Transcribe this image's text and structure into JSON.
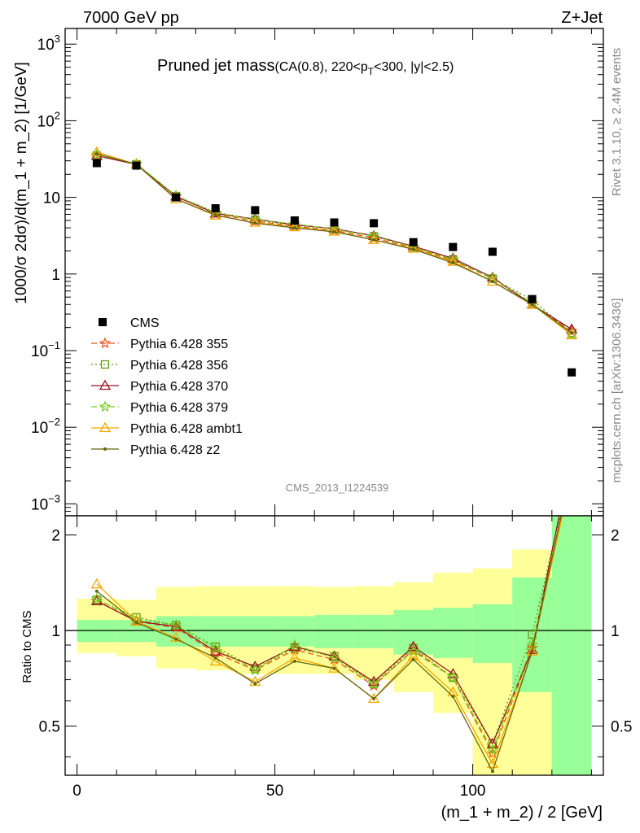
{
  "header": {
    "left": "7000 GeV pp",
    "right": "Z+Jet",
    "side_top": "Rivet 3.1.10, ≥ 2.4M events",
    "side_bottom": "mcplots.cern.ch [arXiv:1306.3436]",
    "watermark": "CMS_2013_I1224539"
  },
  "title": {
    "main": "Pruned jet mass",
    "sub_prefix": "(CA(0.8), 220<p",
    "sub_subscript": "T",
    "sub_suffix": "<300, |y|<2.5)"
  },
  "axes": {
    "ylabel_top": "1000/σ 2dσ)/d(m_1 + m_2) [1/GeV]",
    "ylabel_bottom": "Ratio to CMS",
    "xlabel": "(m_1 + m_2) / 2 [GeV]"
  },
  "colors": {
    "cms": "#000000",
    "p355": "#ee5511",
    "p356": "#669911",
    "p370": "#991122",
    "p379": "#77cc22",
    "ambt1": "#f5a800",
    "z2": "#666611",
    "band_inner": "#99ff99",
    "band_outer": "#ffff99"
  },
  "chart_data": [
    {
      "type": "scatter",
      "title": "Pruned jet mass(CA(0.8), 220<pT<300, |y|<2.5)",
      "xlabel": "(m_1 + m_2) / 2 [GeV]",
      "ylabel": "1000/σ 2dσ)/d(m_1 + m_2) [1/GeV]",
      "xlim": [
        -3,
        133
      ],
      "ylim": [
        0.0007,
        1600
      ],
      "yscale": "log",
      "yticks": [
        {
          "v": 0.001,
          "base": "10",
          "exp": "−3"
        },
        {
          "v": 0.01,
          "base": "10",
          "exp": "−2"
        },
        {
          "v": 0.1,
          "base": "10",
          "exp": "−1"
        },
        {
          "v": 1,
          "base": "1",
          "exp": ""
        },
        {
          "v": 10,
          "base": "10",
          "exp": ""
        },
        {
          "v": 100,
          "base": "10",
          "exp": "2"
        },
        {
          "v": 1000,
          "base": "10",
          "exp": "3"
        }
      ],
      "x": [
        5,
        15,
        25,
        35,
        45,
        55,
        65,
        75,
        85,
        95,
        105,
        115,
        125
      ],
      "legend_position": "left",
      "series": [
        {
          "name": "CMS",
          "key": "cms",
          "style": "data",
          "values": [
            28,
            26,
            10,
            7.2,
            6.8,
            5.0,
            4.7,
            4.6,
            2.6,
            2.25,
            1.95,
            0.47,
            0.052
          ]
        },
        {
          "name": "Pythia 6.428 355",
          "key": "p355",
          "style": "dashed",
          "marker": "star",
          "values": [
            35,
            27,
            10.2,
            6.1,
            4.9,
            4.2,
            3.7,
            2.95,
            2.2,
            1.5,
            0.87,
            0.4,
            0.18
          ]
        },
        {
          "name": "Pythia 6.428 356",
          "key": "p356",
          "style": "dotted",
          "marker": "square",
          "values": [
            35,
            27,
            10.4,
            6.4,
            5.1,
            4.3,
            3.9,
            3.1,
            2.25,
            1.55,
            0.87,
            0.46,
            0.17
          ]
        },
        {
          "name": "Pythia 6.428 370",
          "key": "p370",
          "style": "solid",
          "marker": "triangle",
          "values": [
            35,
            27,
            10.3,
            6.2,
            5.2,
            4.4,
            3.9,
            3.15,
            2.3,
            1.6,
            0.9,
            0.4,
            0.19
          ]
        },
        {
          "name": "Pythia 6.428 379",
          "key": "p379",
          "style": "dashed",
          "marker": "star",
          "values": [
            36,
            27.5,
            10.5,
            6.3,
            5.1,
            4.5,
            3.85,
            3.1,
            2.25,
            1.55,
            0.88,
            0.42,
            0.16
          ]
        },
        {
          "name": "Pythia 6.428 ambt1",
          "key": "ambt1",
          "style": "solid",
          "marker": "triangle",
          "values": [
            39,
            27,
            9.5,
            5.8,
            4.7,
            4.1,
            3.6,
            2.8,
            2.15,
            1.45,
            0.8,
            0.4,
            0.16
          ]
        },
        {
          "name": "Pythia 6.428 z2",
          "key": "z2",
          "style": "solid",
          "marker": "dot",
          "values": [
            37,
            27,
            9.5,
            5.9,
            4.6,
            4.0,
            3.55,
            2.8,
            2.1,
            1.4,
            0.8,
            0.4,
            0.17
          ]
        }
      ]
    },
    {
      "type": "line",
      "ylabel": "Ratio to CMS",
      "xlabel": "(m_1 + m_2) / 2 [GeV]",
      "xlim": [
        -3,
        133
      ],
      "ylim": [
        0.35,
        2.3
      ],
      "xticks": [
        0,
        50,
        100
      ],
      "yticks": [
        0.5,
        1,
        2
      ],
      "bins": [
        [
          0,
          10
        ],
        [
          10,
          20
        ],
        [
          20,
          30
        ],
        [
          30,
          40
        ],
        [
          40,
          50
        ],
        [
          50,
          60
        ],
        [
          60,
          70
        ],
        [
          70,
          80
        ],
        [
          80,
          90
        ],
        [
          90,
          100
        ],
        [
          100,
          110
        ],
        [
          110,
          120
        ],
        [
          120,
          130
        ]
      ],
      "band_inner": [
        [
          0.92,
          1.08
        ],
        [
          0.92,
          1.08
        ],
        [
          0.89,
          1.11
        ],
        [
          0.89,
          1.11
        ],
        [
          0.89,
          1.11
        ],
        [
          0.89,
          1.11
        ],
        [
          0.88,
          1.12
        ],
        [
          0.88,
          1.12
        ],
        [
          0.84,
          1.16
        ],
        [
          0.82,
          1.18
        ],
        [
          0.79,
          1.21
        ],
        [
          0.64,
          1.47
        ],
        [
          0.35,
          2.3
        ]
      ],
      "band_outer": [
        [
          0.85,
          1.26
        ],
        [
          0.83,
          1.25
        ],
        [
          0.76,
          1.37
        ],
        [
          0.75,
          1.38
        ],
        [
          0.73,
          1.38
        ],
        [
          0.73,
          1.38
        ],
        [
          0.73,
          1.37
        ],
        [
          0.7,
          1.38
        ],
        [
          0.64,
          1.42
        ],
        [
          0.55,
          1.52
        ],
        [
          0.35,
          1.57
        ],
        [
          0.35,
          1.8
        ],
        [
          0.35,
          2.3
        ]
      ],
      "series": [
        {
          "name": "Pythia 6.428 355",
          "key": "p355",
          "style": "dashed",
          "marker": "star",
          "values": [
            1.24,
            1.07,
            1.02,
            0.85,
            0.75,
            0.87,
            0.81,
            0.67,
            0.87,
            0.71,
            0.41,
            0.88,
            3.2
          ]
        },
        {
          "name": "Pythia 6.428 356",
          "key": "p356",
          "style": "dotted",
          "marker": "square",
          "values": [
            1.25,
            1.1,
            1.04,
            0.89,
            0.76,
            0.88,
            0.83,
            0.68,
            0.88,
            0.71,
            0.44,
            0.97,
            3.3
          ]
        },
        {
          "name": "Pythia 6.428 370",
          "key": "p370",
          "style": "solid",
          "marker": "triangle",
          "values": [
            1.24,
            1.07,
            1.03,
            0.86,
            0.77,
            0.89,
            0.83,
            0.69,
            0.89,
            0.73,
            0.44,
            0.87,
            3.6
          ]
        },
        {
          "name": "Pythia 6.428 379",
          "key": "p379",
          "style": "dashed",
          "marker": "star",
          "values": [
            1.26,
            1.08,
            1.04,
            0.88,
            0.75,
            0.9,
            0.82,
            0.68,
            0.86,
            0.71,
            0.42,
            0.9,
            3.1
          ]
        },
        {
          "name": "Pythia 6.428 ambt1",
          "key": "ambt1",
          "style": "solid",
          "marker": "triangle",
          "values": [
            1.4,
            1.07,
            0.95,
            0.8,
            0.69,
            0.82,
            0.76,
            0.61,
            0.83,
            0.64,
            0.38,
            0.86,
            3.1
          ]
        },
        {
          "name": "Pythia 6.428 z2",
          "key": "z2",
          "style": "solid",
          "marker": "dot",
          "values": [
            1.33,
            1.06,
            0.94,
            0.82,
            0.68,
            0.8,
            0.76,
            0.61,
            0.81,
            0.62,
            0.36,
            0.86,
            3.3
          ]
        }
      ]
    }
  ]
}
